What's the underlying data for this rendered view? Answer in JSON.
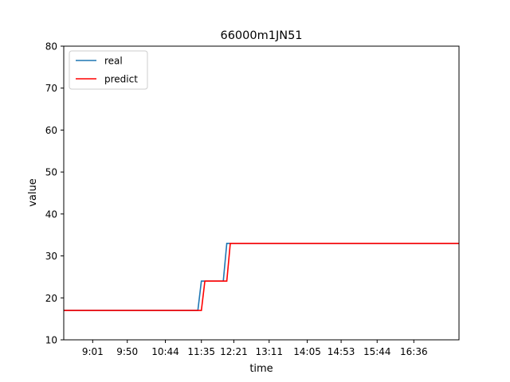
{
  "chart_data": {
    "type": "line",
    "title": "66000m1JN51",
    "xlabel": "time",
    "ylabel": "value",
    "x_ticks": [
      "9:01",
      "9:50",
      "10:44",
      "11:35",
      "12:21",
      "13:11",
      "14:05",
      "14:53",
      "15:44",
      "16:36"
    ],
    "ylim": [
      10,
      80
    ],
    "y_ticks": [
      10,
      20,
      30,
      40,
      50,
      60,
      70,
      80
    ],
    "grid": false,
    "legend": {
      "placement": "top-left"
    },
    "series": [
      {
        "name": "real",
        "color": "#1f77b4",
        "points": [
          [
            "8:20",
            17
          ],
          [
            "11:30",
            17
          ],
          [
            "11:35",
            24
          ],
          [
            "12:06",
            24
          ],
          [
            "12:11",
            33
          ],
          [
            "17:40",
            33
          ]
        ]
      },
      {
        "name": "predict",
        "color": "#ff0000",
        "points": [
          [
            "8:20",
            17
          ],
          [
            "11:35",
            17
          ],
          [
            "11:40",
            24
          ],
          [
            "12:11",
            24
          ],
          [
            "12:16",
            33
          ],
          [
            "17:40",
            33
          ]
        ]
      }
    ]
  }
}
